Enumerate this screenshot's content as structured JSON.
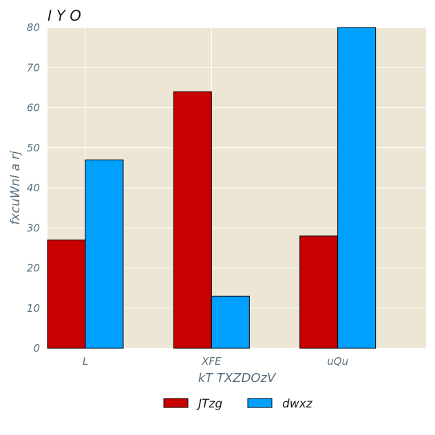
{
  "chart_data": {
    "type": "bar",
    "title": "I Y O",
    "xlabel": "kT TXZDOzV",
    "ylabel": "fxcuWnl a rj",
    "categories": [
      "L",
      "XFE",
      "uQu"
    ],
    "series": [
      {
        "name": "JTzg",
        "values": [
          27,
          64,
          28
        ],
        "color": "#c80000"
      },
      {
        "name": "dwxz",
        "values": [
          47,
          13,
          80
        ],
        "color": "#00a0ff"
      }
    ],
    "ylim": [
      0,
      80
    ],
    "yticks": [
      0,
      10,
      20,
      30,
      40,
      50,
      60,
      70,
      80
    ],
    "grid": true,
    "legend_position": "bottom-center",
    "colors": {
      "plot_background": "#ede6d4",
      "grid": "#ffffff",
      "bar_edge": "#000000",
      "tick_text": "#5b6f7c",
      "title_text": "#1a1a1a"
    }
  }
}
